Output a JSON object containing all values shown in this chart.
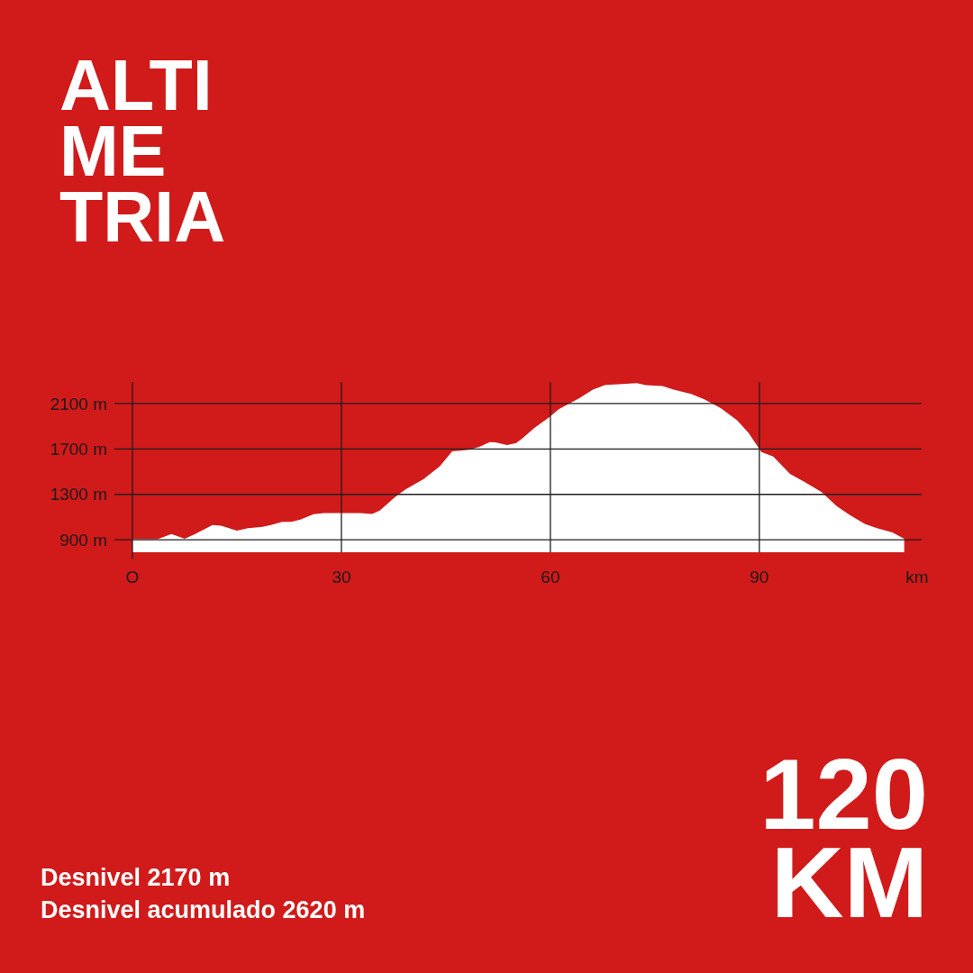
{
  "chart_data": {
    "type": "area",
    "title": "ALTI\nME\nTRIA",
    "xlabel": "km",
    "annotations": [
      "120\nKM",
      "Desnivel 2170 m",
      "Desnivel acumulado 2620 m"
    ],
    "x": [
      0,
      3.6,
      5.6,
      7.5,
      9.0,
      11.5,
      12.7,
      15.0,
      16.6,
      18.7,
      20.0,
      21.5,
      22.8,
      24.1,
      26.0,
      27.5,
      32.7,
      34.4,
      35.5,
      37.7,
      39.2,
      41.8,
      44.1,
      45.9,
      48.3,
      49.8,
      51.3,
      52.1,
      53.8,
      55.1,
      56.0,
      57.7,
      59.9,
      61.2,
      64.2,
      66.1,
      67.9,
      69.8,
      72.4,
      73.7,
      76.1,
      77.6,
      80.2,
      82.1,
      84.5,
      86.8,
      88.4,
      90.3,
      92.0,
      94.4,
      96.5,
      98.9,
      101.1,
      103.0,
      105.2,
      106.9,
      109.1,
      110.8
    ],
    "series": [
      {
        "color": "#ffffff",
        "values": [
          905,
          905,
          950,
          910,
          950,
          1030,
          1025,
          980,
          1003,
          1015,
          1033,
          1057,
          1057,
          1077,
          1125,
          1136,
          1136,
          1128,
          1157,
          1276,
          1343,
          1435,
          1546,
          1679,
          1692,
          1719,
          1761,
          1758,
          1735,
          1753,
          1793,
          1886,
          1983,
          2050,
          2150,
          2222,
          2265,
          2270,
          2281,
          2262,
          2254,
          2225,
          2185,
          2138,
          2058,
          1952,
          1846,
          1673,
          1633,
          1480,
          1409,
          1321,
          1197,
          1117,
          1038,
          1003,
          964,
          910
        ]
      }
    ],
    "xlim": [
      0,
      113.3
    ],
    "ylim": [
      790,
      2290
    ],
    "xticks": [
      {
        "value": 0,
        "label": "O"
      },
      30,
      60,
      90
    ],
    "yticks": [
      {
        "value": 900,
        "label": "900 m"
      },
      {
        "value": 1300,
        "label": "1300 m"
      },
      {
        "value": 1700,
        "label": "1700 m"
      },
      {
        "value": 2100,
        "label": "2100 m"
      }
    ],
    "grid": true
  }
}
